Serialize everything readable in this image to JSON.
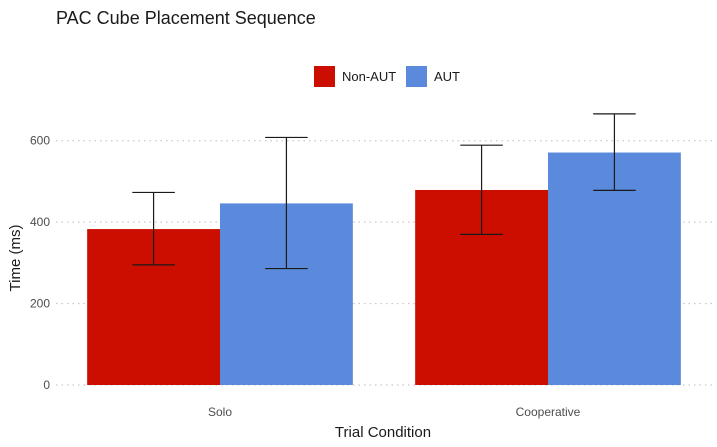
{
  "chart_data": {
    "type": "bar",
    "title": "PAC Cube Placement Sequence",
    "xlabel": "Trial Condition",
    "ylabel": "Time (ms)",
    "categories": [
      "Solo",
      "Cooperative"
    ],
    "series": [
      {
        "name": "Non-AUT",
        "color": "#CC0E00",
        "values": [
          383,
          479
        ],
        "error_low": [
          295,
          370
        ],
        "error_high": [
          473,
          589
        ]
      },
      {
        "name": "AUT",
        "color": "#5B89DB",
        "values": [
          446,
          571
        ],
        "error_low": [
          286,
          478
        ],
        "error_high": [
          608,
          666
        ]
      }
    ],
    "ylim": [
      0,
      700
    ],
    "yticks": [
      0,
      200,
      400,
      600
    ],
    "grid": "horizontal-dotted",
    "legend_position": "top-center"
  }
}
